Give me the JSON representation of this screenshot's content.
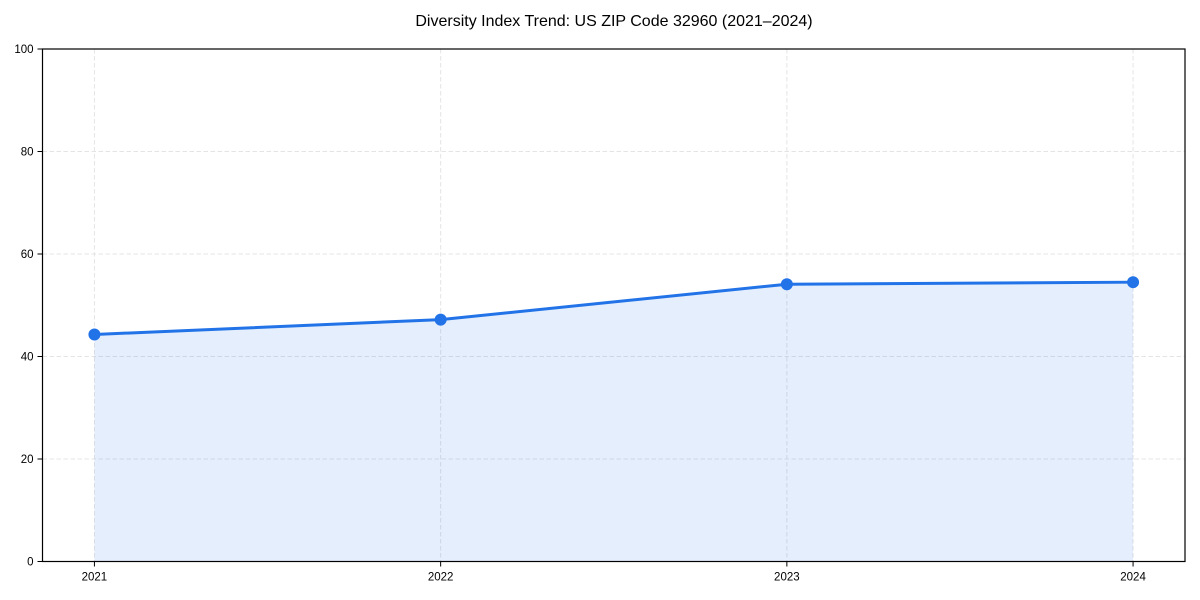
{
  "chart_data": {
    "type": "area",
    "title": "Diversity Index Trend: US ZIP Code 32960 (2021–2024)",
    "series_name": "Diversity Index",
    "categories": [
      "2021",
      "2022",
      "2023",
      "2024"
    ],
    "x": [
      2021,
      2022,
      2023,
      2024
    ],
    "values": [
      44.3,
      47.2,
      54.1,
      54.5
    ],
    "xlabel": "",
    "ylabel": "",
    "xlim": [
      2020.85,
      2024.15
    ],
    "ylim": [
      0,
      100
    ],
    "xticks": [
      2021,
      2022,
      2023,
      2024
    ],
    "xtick_labels": [
      "2021",
      "2022",
      "2023",
      "2024"
    ],
    "yticks": [
      0,
      20,
      40,
      60,
      80,
      100
    ],
    "ytick_labels": [
      "0",
      "20",
      "40",
      "60",
      "80",
      "100"
    ],
    "grid": true,
    "grid_style": "dashed",
    "grid_color": "#e4e4e4",
    "legend": false,
    "line_color": "#2273e8",
    "line_width": 3,
    "marker": "circle",
    "marker_radius": 6,
    "fill_color": "#2273e8",
    "fill_opacity": 0.12,
    "axes_frame_color": "#000000",
    "background_color": "#ffffff"
  }
}
